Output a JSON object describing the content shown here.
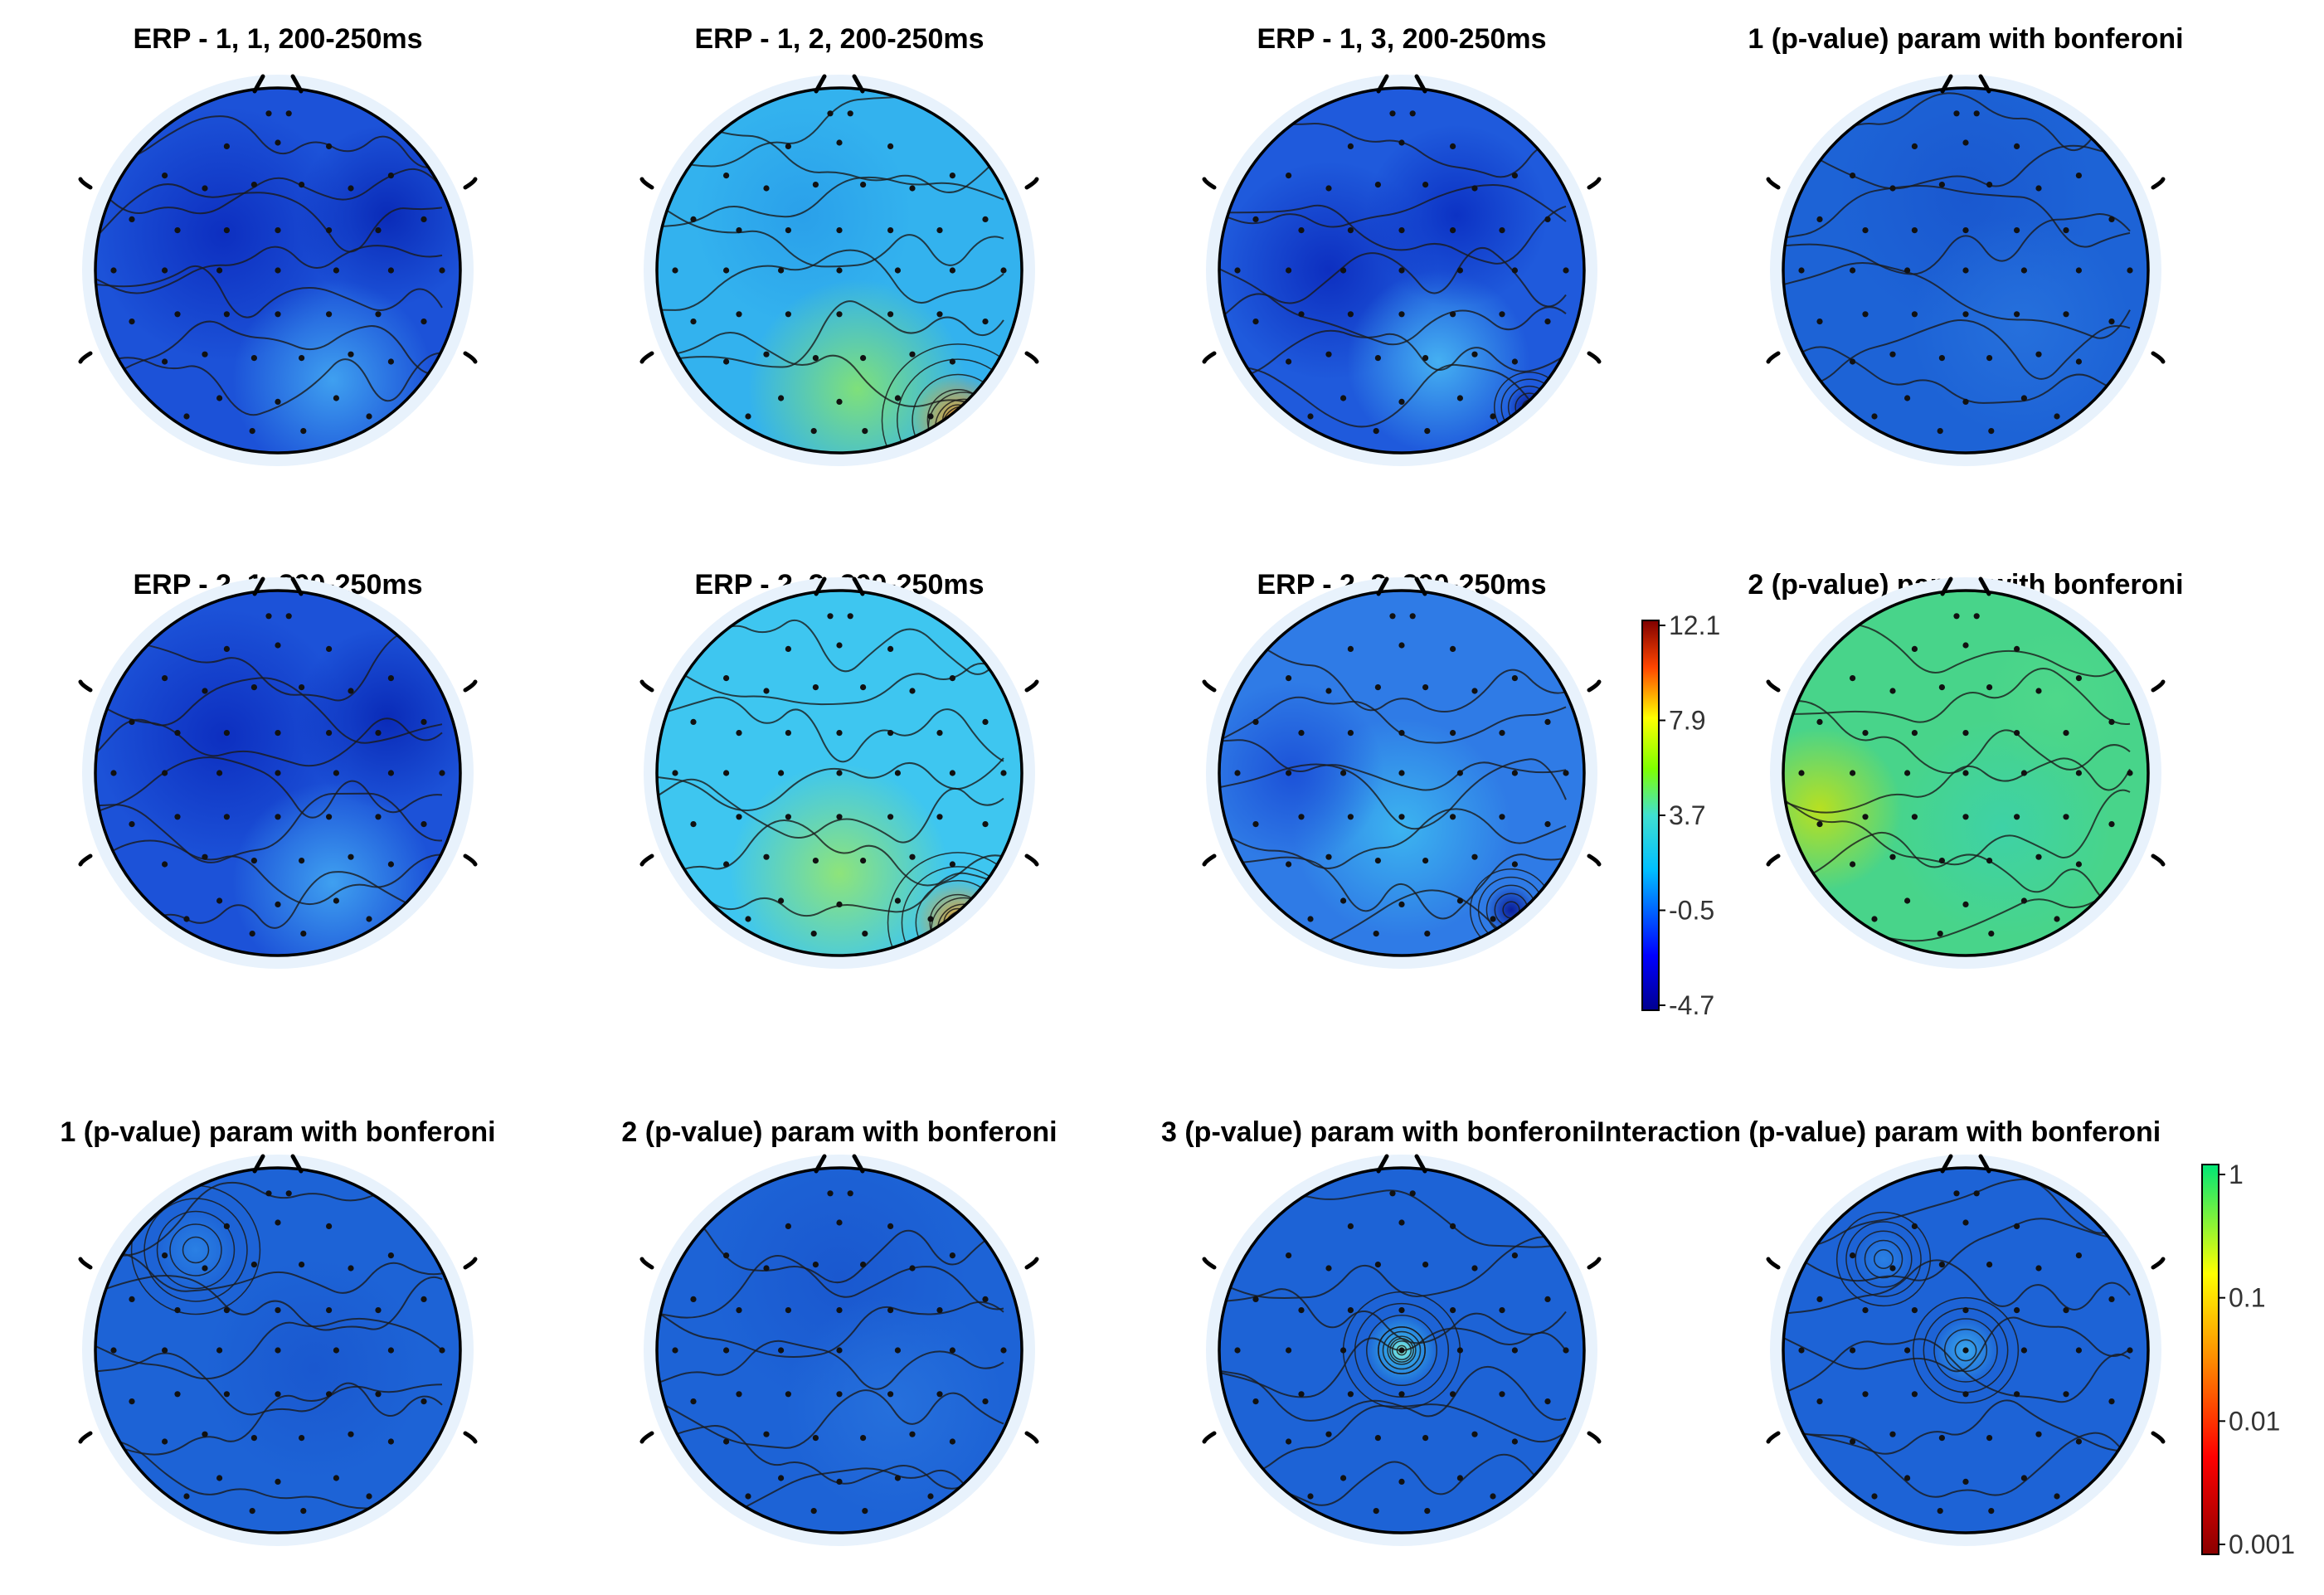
{
  "figure": {
    "rows": [
      {
        "panels": [
          {
            "title": "ERP - 1, 1, 200-250ms",
            "pattern": "erp_low"
          },
          {
            "title": "ERP - 1, 2, 200-250ms",
            "pattern": "erp_hot"
          },
          {
            "title": "ERP - 1, 3, 200-250ms",
            "pattern": "erp_low_dip"
          },
          {
            "title": "1 (p-value) param with bonferoni",
            "pattern": "p_blue"
          }
        ]
      },
      {
        "panels": [
          {
            "title": "ERP - 2, 1, 200-250ms",
            "pattern": "erp_low"
          },
          {
            "title": "ERP - 2, 2, 200-250ms",
            "pattern": "erp_hot2"
          },
          {
            "title": "ERP - 2, 3, 200-250ms",
            "pattern": "erp_mid_dip"
          },
          {
            "title": "2 (p-value) param with bonferoni",
            "pattern": "p_green"
          }
        ]
      },
      {
        "panels": [
          {
            "title": "1 (p-value) param with bonferoni",
            "pattern": "p_blue_ul"
          },
          {
            "title": "2 (p-value) param with bonferoni",
            "pattern": "p_blue"
          },
          {
            "title": "3 (p-value) param with bonferoniInteraction (p-value) param with bonferoni",
            "pattern": "p_blue_center"
          },
          {
            "title": "",
            "pattern": "p_blue_center2"
          }
        ]
      }
    ],
    "colorbars": [
      {
        "name": "erp-colorbar",
        "labels": [
          "12.1",
          "7.9",
          "3.7",
          "-0.5",
          "-4.7"
        ]
      },
      {
        "name": "pvalue-colorbar",
        "labels": [
          "1",
          "0.1",
          "0.01",
          "0.001"
        ]
      }
    ],
    "colors": {
      "head_outline": "#000000",
      "electrode": "#111111",
      "contour": "#1a1a1a"
    }
  }
}
